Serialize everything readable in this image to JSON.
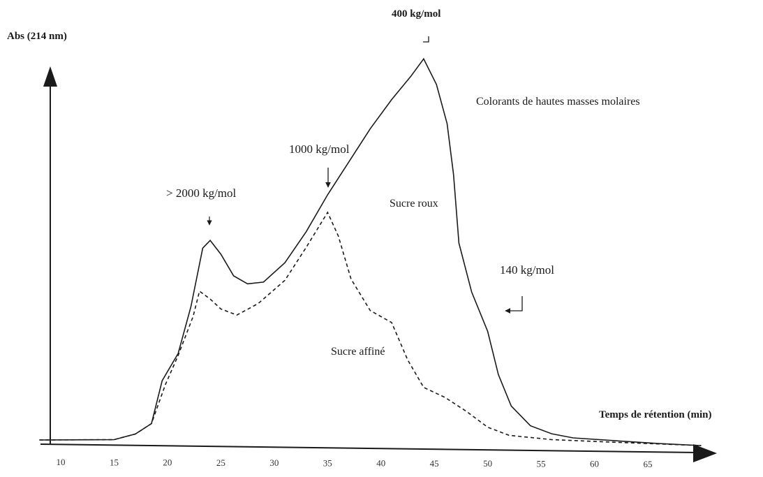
{
  "chart_data": {
    "type": "line",
    "ylabel": "Abs (214 nm)",
    "xlabel": "Temps de rétention (min)",
    "x_ticks": [
      "10",
      "15",
      "20",
      "25",
      "30",
      "35",
      "40",
      "45",
      "50",
      "55",
      "60",
      "65"
    ],
    "xlim": [
      8,
      70
    ],
    "ylim": [
      0,
      1
    ],
    "grid": false,
    "series": [
      {
        "name": "Sucre roux",
        "style": "solid",
        "points": [
          [
            8,
            0.0
          ],
          [
            15,
            0.003
          ],
          [
            17,
            0.018
          ],
          [
            18.5,
            0.045
          ],
          [
            19.5,
            0.155
          ],
          [
            21,
            0.225
          ],
          [
            22.2,
            0.345
          ],
          [
            23.3,
            0.495
          ],
          [
            24,
            0.515
          ],
          [
            25,
            0.48
          ],
          [
            26.2,
            0.425
          ],
          [
            27.5,
            0.405
          ],
          [
            29,
            0.41
          ],
          [
            31,
            0.46
          ],
          [
            33,
            0.54
          ],
          [
            35,
            0.635
          ],
          [
            37,
            0.72
          ],
          [
            39,
            0.805
          ],
          [
            41,
            0.88
          ],
          [
            42.8,
            0.94
          ],
          [
            44,
            0.985
          ],
          [
            45.2,
            0.92
          ],
          [
            46.2,
            0.82
          ],
          [
            46.8,
            0.69
          ],
          [
            47.3,
            0.515
          ],
          [
            48.5,
            0.39
          ],
          [
            50,
            0.29
          ],
          [
            51,
            0.18
          ],
          [
            52.2,
            0.1
          ],
          [
            54,
            0.05
          ],
          [
            56,
            0.03
          ],
          [
            58,
            0.02
          ],
          [
            62,
            0.014
          ],
          [
            66,
            0.008
          ],
          [
            70,
            0.004
          ]
        ]
      },
      {
        "name": "Sucre affiné",
        "style": "dashed",
        "points": [
          [
            8,
            0.0
          ],
          [
            15,
            0.003
          ],
          [
            17,
            0.018
          ],
          [
            18.5,
            0.045
          ],
          [
            19.8,
            0.145
          ],
          [
            21,
            0.22
          ],
          [
            22.4,
            0.32
          ],
          [
            23,
            0.385
          ],
          [
            24,
            0.365
          ],
          [
            25,
            0.34
          ],
          [
            26.5,
            0.325
          ],
          [
            28.5,
            0.355
          ],
          [
            31,
            0.415
          ],
          [
            33,
            0.5
          ],
          [
            35,
            0.59
          ],
          [
            36,
            0.53
          ],
          [
            37.2,
            0.42
          ],
          [
            39,
            0.34
          ],
          [
            41,
            0.31
          ],
          [
            42.5,
            0.215
          ],
          [
            44,
            0.145
          ],
          [
            46,
            0.12
          ],
          [
            48,
            0.085
          ],
          [
            50,
            0.045
          ],
          [
            52,
            0.025
          ],
          [
            56,
            0.015
          ],
          [
            62,
            0.01
          ],
          [
            70,
            0.004
          ]
        ]
      }
    ],
    "annotations": [
      {
        "text": "400 kg/mol",
        "x": 44,
        "bold": true,
        "arrow": "down"
      },
      {
        "text": "1000 kg/mol",
        "x": 34.5,
        "arrow": "down"
      },
      {
        "text": "> 2000 kg/mol",
        "x": 24,
        "arrow": "down"
      },
      {
        "text": "140 kg/mol",
        "x": 50,
        "arrow": "left"
      },
      {
        "text": "Colorants de hautes masses molaires"
      },
      {
        "text": "Sucre roux"
      },
      {
        "text": "Sucre affiné"
      }
    ]
  }
}
